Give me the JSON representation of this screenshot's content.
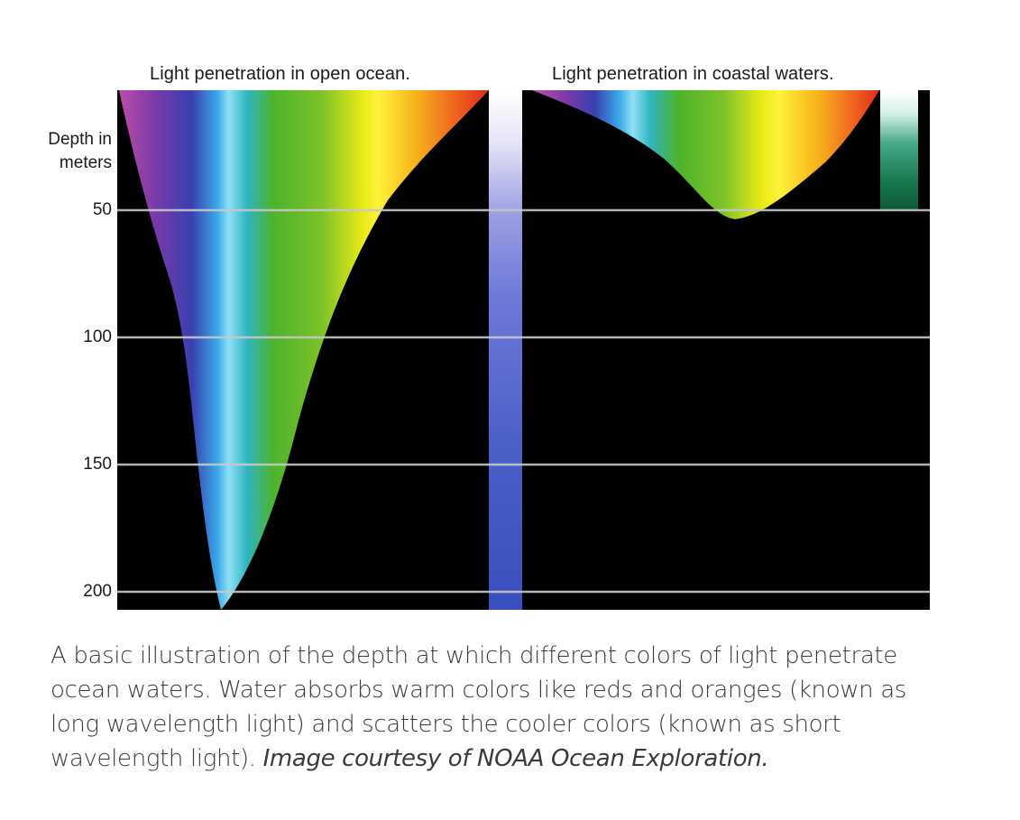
{
  "titles": {
    "open_ocean": "Light penetration in open ocean.",
    "coastal": "Light penetration in coastal waters."
  },
  "axis": {
    "label_line1": "Depth in",
    "label_line2": "meters",
    "ticks": [
      "50",
      "100",
      "150",
      "200"
    ]
  },
  "caption": {
    "text": "A basic illustration of the depth at which different colors of light penetrate ocean waters. Water absorbs warm colors like reds and oranges (known as long wavelength light) and scatters the cooler colors (known as short wavelength light).",
    "credit": "Image courtesy of NOAA Ocean Exploration."
  },
  "colors": {
    "background": "#000000",
    "violet": "#b04aa8",
    "indigo": "#5b3aa0",
    "blue": "#2f5fd0",
    "cyan": "#39c6ee",
    "green": "#4fb82e",
    "yellow": "#f4ec12",
    "orange": "#f08a1e",
    "red": "#e8321e"
  },
  "penetration_depth_m": {
    "open_ocean_max": 200,
    "coastal_max": 50
  }
}
